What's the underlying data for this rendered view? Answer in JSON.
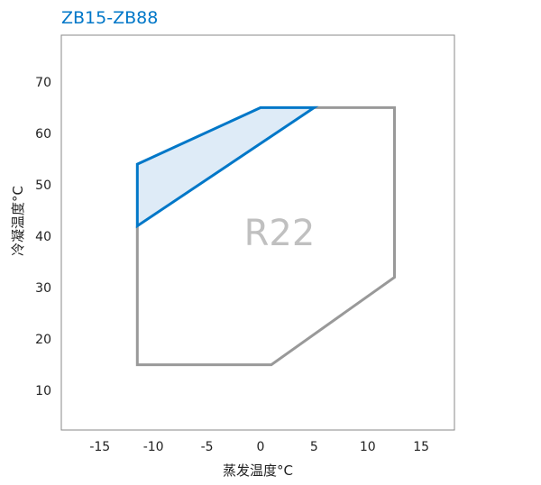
{
  "chart_data": {
    "type": "area",
    "title": "ZB15-ZB88",
    "xlabel": "蒸发温度°C",
    "ylabel": "冷凝温度°C",
    "xlim": [
      -18.6,
      18.1
    ],
    "ylim": [
      2.3,
      79.1
    ],
    "xticks": [
      -15,
      -10,
      -5,
      0,
      5,
      10,
      15
    ],
    "yticks": [
      10,
      20,
      30,
      40,
      50,
      60,
      70
    ],
    "grid": false,
    "annotation": "R22",
    "series": [
      {
        "points": [
          [
            -11.5,
            42
          ],
          [
            -11.5,
            15
          ],
          [
            1,
            15
          ],
          [
            12.5,
            32
          ],
          [
            12.5,
            65
          ],
          [
            5,
            65
          ]
        ],
        "color": "#999999",
        "closed": false
      },
      {
        "points": [
          [
            -11.5,
            42
          ],
          [
            -11.5,
            54
          ],
          [
            0,
            65
          ],
          [
            5,
            65
          ]
        ],
        "color": "#0077c8",
        "fill": "#deebf7",
        "closed": true
      }
    ],
    "colors": {
      "title": "#0077c8",
      "frame": "#888888",
      "annotation": "#c0c0c0"
    }
  }
}
